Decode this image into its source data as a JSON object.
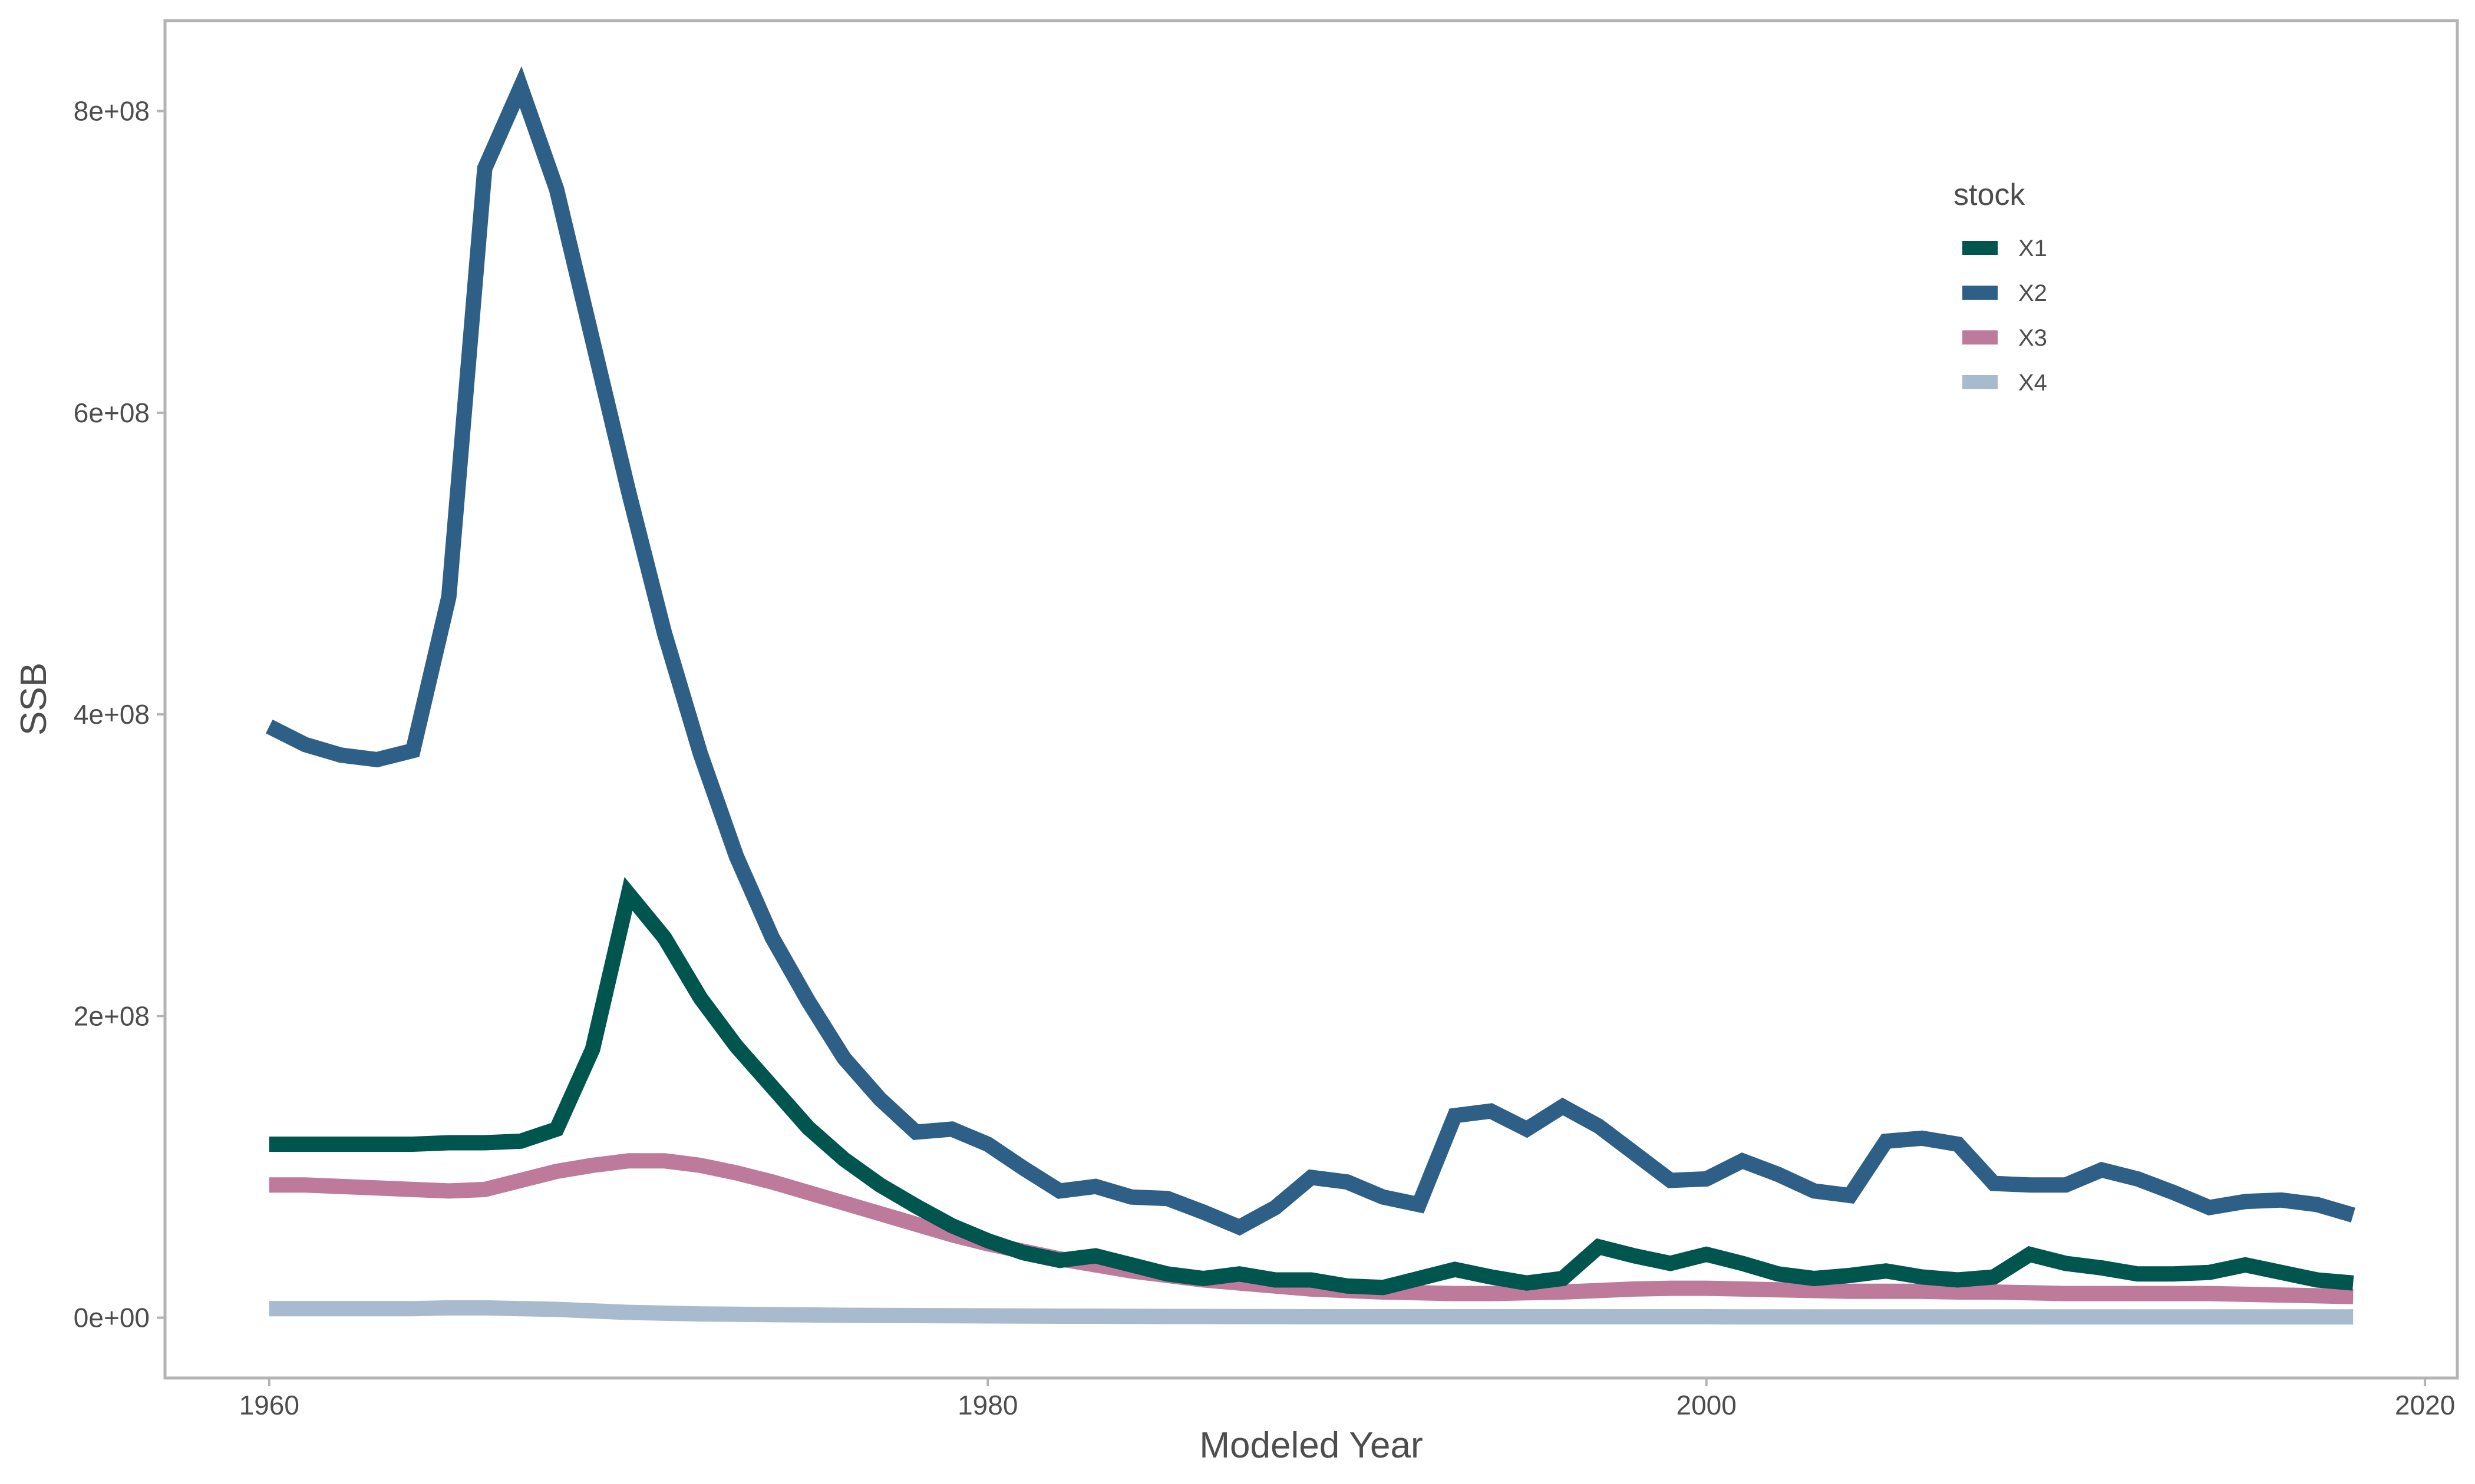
{
  "chart_data": {
    "type": "line",
    "xlabel": "Modeled Year",
    "ylabel": "SSB",
    "xlim": [
      1957.1,
      2020.9
    ],
    "ylim": [
      -40000000,
      860000000
    ],
    "x_ticks": [
      1960,
      1980,
      2000,
      2020
    ],
    "x_tick_labels": [
      "1960",
      "1980",
      "2000",
      "2020"
    ],
    "y_ticks": [
      0,
      200000000,
      400000000,
      600000000,
      800000000
    ],
    "y_tick_labels": [
      "0e+00",
      "2e+08",
      "4e+08",
      "6e+08",
      "8e+08"
    ],
    "grid": false,
    "legend": {
      "title": "stock",
      "placement": "top-right"
    },
    "series": [
      {
        "name": "X1",
        "color": "#00564f",
        "x": [
          1960,
          1961,
          1962,
          1963,
          1964,
          1965,
          1966,
          1967,
          1968,
          1969,
          1970,
          1971,
          1972,
          1973,
          1974,
          1975,
          1976,
          1977,
          1978,
          1979,
          1980,
          1981,
          1982,
          1983,
          1984,
          1985,
          1986,
          1987,
          1988,
          1989,
          1990,
          1991,
          1992,
          1993,
          1994,
          1995,
          1996,
          1997,
          1998,
          1999,
          2000,
          2001,
          2002,
          2003,
          2004,
          2005,
          2006,
          2007,
          2008,
          2009,
          2010,
          2011,
          2012,
          2013,
          2014,
          2015,
          2016,
          2017,
          2018
        ],
        "values": [
          115000000,
          115000000,
          115000000,
          115000000,
          115000000,
          116000000,
          116000000,
          117000000,
          125000000,
          178000000,
          281000000,
          252000000,
          212000000,
          180000000,
          153000000,
          126000000,
          105000000,
          88000000,
          74000000,
          61000000,
          51000000,
          43000000,
          38000000,
          41000000,
          35000000,
          29000000,
          26000000,
          29000000,
          25000000,
          25000000,
          21000000,
          20000000,
          26000000,
          32000000,
          27000000,
          23000000,
          26000000,
          47000000,
          41000000,
          36000000,
          42000000,
          36000000,
          29000000,
          26000000,
          28000000,
          31000000,
          27000000,
          25000000,
          27000000,
          42000000,
          36000000,
          33000000,
          29000000,
          29000000,
          30000000,
          35000000,
          30000000,
          25000000,
          23000000
        ]
      },
      {
        "name": "X2",
        "color": "#2e5f87",
        "x": [
          1960,
          1961,
          1962,
          1963,
          1964,
          1965,
          1966,
          1967,
          1968,
          1969,
          1970,
          1971,
          1972,
          1973,
          1974,
          1975,
          1976,
          1977,
          1978,
          1979,
          1980,
          1981,
          1982,
          1983,
          1984,
          1985,
          1986,
          1987,
          1988,
          1989,
          1990,
          1991,
          1992,
          1993,
          1994,
          1995,
          1996,
          1997,
          1998,
          1999,
          2000,
          2001,
          2002,
          2003,
          2004,
          2005,
          2006,
          2007,
          2008,
          2009,
          2010,
          2011,
          2012,
          2013,
          2014,
          2015,
          2016,
          2017,
          2018
        ],
        "values": [
          392000000,
          380000000,
          373000000,
          370000000,
          376000000,
          478000000,
          762000000,
          816000000,
          748000000,
          648000000,
          548000000,
          454000000,
          374000000,
          306000000,
          252000000,
          210000000,
          172000000,
          145000000,
          123000000,
          125000000,
          115000000,
          99000000,
          84000000,
          87000000,
          80000000,
          79000000,
          70000000,
          60000000,
          73000000,
          93000000,
          90000000,
          80000000,
          75000000,
          134000000,
          137000000,
          125000000,
          140000000,
          127000000,
          109000000,
          91000000,
          92000000,
          104000000,
          95000000,
          84000000,
          81000000,
          117000000,
          119000000,
          115000000,
          89000000,
          88000000,
          88000000,
          98000000,
          92000000,
          83000000,
          73000000,
          77000000,
          78000000,
          75000000,
          68000000
        ]
      },
      {
        "name": "X3",
        "color": "#be7a9b",
        "x": [
          1960,
          1961,
          1962,
          1963,
          1964,
          1965,
          1966,
          1967,
          1968,
          1969,
          1970,
          1971,
          1972,
          1973,
          1974,
          1975,
          1976,
          1977,
          1978,
          1979,
          1980,
          1981,
          1982,
          1983,
          1984,
          1985,
          1986,
          1987,
          1988,
          1989,
          1990,
          1991,
          1992,
          1993,
          1994,
          1995,
          1996,
          1997,
          1998,
          1999,
          2000,
          2001,
          2002,
          2003,
          2004,
          2005,
          2006,
          2007,
          2008,
          2009,
          2010,
          2011,
          2012,
          2013,
          2014,
          2015,
          2016,
          2017,
          2018
        ],
        "values": [
          88000000,
          88000000,
          87000000,
          86000000,
          85000000,
          84000000,
          85000000,
          91000000,
          97000000,
          101000000,
          104000000,
          104000000,
          101000000,
          96000000,
          90000000,
          83000000,
          76000000,
          69000000,
          62000000,
          55000000,
          49000000,
          44000000,
          39000000,
          35000000,
          31000000,
          28000000,
          25000000,
          23000000,
          21000000,
          19000000,
          18000000,
          17000000,
          16500000,
          16000000,
          16000000,
          16500000,
          17000000,
          18000000,
          19000000,
          19500000,
          19500000,
          19000000,
          18500000,
          18000000,
          17500000,
          17500000,
          17500000,
          17000000,
          17000000,
          16500000,
          16000000,
          16000000,
          16000000,
          16000000,
          16000000,
          15500000,
          15000000,
          14500000,
          14000000
        ]
      },
      {
        "name": "X4",
        "color": "#a8bbce",
        "x": [
          1960,
          1961,
          1962,
          1963,
          1964,
          1965,
          1966,
          1967,
          1968,
          1969,
          1970,
          1971,
          1972,
          1973,
          1974,
          1975,
          1976,
          1977,
          1978,
          1979,
          1980,
          1981,
          1982,
          1983,
          1984,
          1985,
          1986,
          1987,
          1988,
          1989,
          1990,
          1991,
          1992,
          1993,
          1994,
          1995,
          1996,
          1997,
          1998,
          1999,
          2000,
          2001,
          2002,
          2003,
          2004,
          2005,
          2006,
          2007,
          2008,
          2009,
          2010,
          2011,
          2012,
          2013,
          2014,
          2015,
          2016,
          2017,
          2018
        ],
        "values": [
          6000000,
          6000000,
          6000000,
          6000000,
          6000000,
          6500000,
          6500000,
          6000000,
          5500000,
          4500000,
          3500000,
          3000000,
          2500000,
          2300000,
          2000000,
          1800000,
          1600000,
          1500000,
          1400000,
          1300000,
          1200000,
          1100000,
          1000000,
          1000000,
          900000,
          800000,
          800000,
          700000,
          700000,
          600000,
          600000,
          600000,
          600000,
          600000,
          600000,
          600000,
          600000,
          600000,
          600000,
          600000,
          600000,
          500000,
          500000,
          500000,
          500000,
          500000,
          500000,
          500000,
          500000,
          500000,
          500000,
          500000,
          500000,
          500000,
          500000,
          500000,
          500000,
          500000,
          500000
        ]
      }
    ]
  }
}
